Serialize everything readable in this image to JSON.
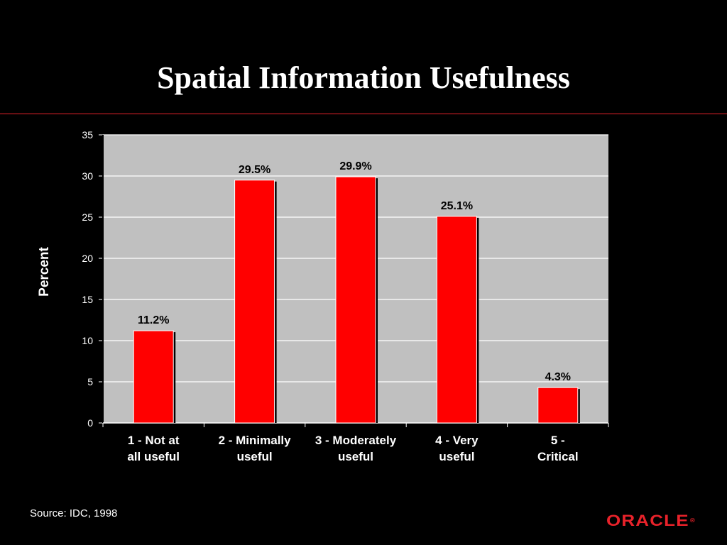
{
  "slide": {
    "title": "Spatial Information Usefulness",
    "source": "Source: IDC, 1998",
    "logo_text": "ORACLE",
    "logo_mark": "®"
  },
  "colors": {
    "background": "#000000",
    "accent": "#e8222a",
    "bar": "#ff0000",
    "plot_area": "#c0c0c0",
    "text": "#ffffff"
  },
  "chart_data": {
    "type": "bar",
    "title": "Spatial Information Usefulness",
    "ylabel": "Percent",
    "xlabel": "",
    "categories": [
      [
        "1 - Not at",
        "all useful"
      ],
      [
        "2 - Minimally",
        "useful"
      ],
      [
        "3 - Moderately",
        "useful"
      ],
      [
        "4 - Very",
        "useful"
      ],
      [
        "5 -",
        "Critical"
      ]
    ],
    "values": [
      11.2,
      29.5,
      29.9,
      25.1,
      4.3
    ],
    "data_labels": [
      "11.2%",
      "29.5%",
      "29.9%",
      "25.1%",
      "4.3%"
    ],
    "ylim": [
      0,
      35
    ],
    "yticks": [
      0,
      5,
      10,
      15,
      20,
      25,
      30,
      35
    ],
    "grid": true,
    "legend": "none"
  }
}
